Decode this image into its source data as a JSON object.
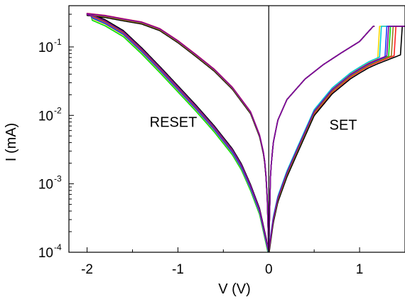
{
  "chart_data": {
    "type": "line",
    "title": "",
    "xlabel": "V (V)",
    "ylabel": "I (mA)",
    "xlim": [
      -2.2,
      1.5
    ],
    "ylim": [
      0.0001,
      0.4
    ],
    "y_scale": "log",
    "x_ticks": [
      -2,
      -1,
      0,
      1
    ],
    "x_tick_labels": [
      "-2",
      "-1",
      "0",
      "1"
    ],
    "y_ticks": [
      0.0001,
      0.001,
      0.01,
      0.1
    ],
    "y_tick_labels": [
      {
        "base": "10",
        "exp": "-4"
      },
      {
        "base": "10",
        "exp": "-3"
      },
      {
        "base": "10",
        "exp": "-2"
      },
      {
        "base": "10",
        "exp": "-1"
      }
    ],
    "grid": false,
    "compliance_current": 0.2,
    "annotations": [
      {
        "text": "RESET",
        "x": -1.05,
        "y": 0.0068
      },
      {
        "text": "SET",
        "x": 0.82,
        "y": 0.0062
      }
    ],
    "series": [
      {
        "color": "#00e000",
        "set_hrs_scale": 1.0,
        "set_knee": 1.32,
        "reset_lrs_scale": 1.0,
        "reset_hrs_scale": 0.88
      },
      {
        "color": "#ffd700",
        "set_hrs_scale": 1.06,
        "set_knee": 1.2,
        "reset_lrs_scale": 0.98,
        "reset_hrs_scale": 0.93
      },
      {
        "color": "#00c8d8",
        "set_hrs_scale": 1.1,
        "set_knee": 1.22,
        "reset_lrs_scale": 1.01,
        "reset_hrs_scale": 0.97
      },
      {
        "color": "#ff2020",
        "set_hrs_scale": 0.95,
        "set_knee": 1.38,
        "reset_lrs_scale": 1.03,
        "reset_hrs_scale": 1.0
      },
      {
        "color": "#000000",
        "set_hrs_scale": 0.9,
        "set_knee": 1.45,
        "reset_lrs_scale": 0.96,
        "reset_hrs_scale": 1.08
      },
      {
        "color": "#1a3cff",
        "set_hrs_scale": 1.02,
        "set_knee": 1.28,
        "reset_lrs_scale": 1.0,
        "reset_hrs_scale": 0.95
      },
      {
        "color": "#9a7a20",
        "set_hrs_scale": 0.98,
        "set_knee": 1.35,
        "reset_lrs_scale": 0.99,
        "reset_hrs_scale": 1.02
      },
      {
        "color": "#8000a0",
        "set_hrs_scale": 1.04,
        "set_knee": 1.3,
        "reset_lrs_scale": 1.02,
        "reset_hrs_scale": 1.04
      }
    ]
  }
}
